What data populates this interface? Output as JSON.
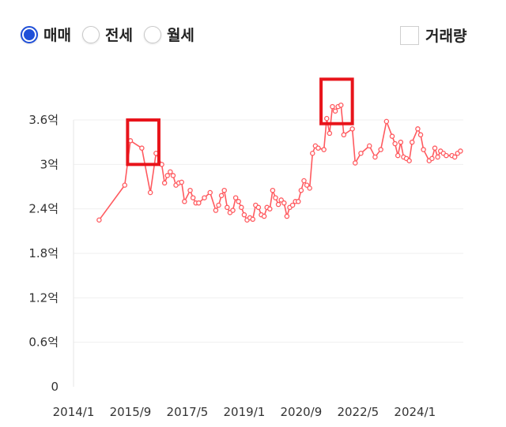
{
  "controls": {
    "radios": [
      {
        "label": "매매",
        "selected": true
      },
      {
        "label": "전세",
        "selected": false
      },
      {
        "label": "월세",
        "selected": false
      }
    ],
    "checkbox": {
      "label": "거래량",
      "checked": false
    }
  },
  "colors": {
    "accent": "#1f4fd8",
    "line": "#ff5a5f",
    "highlight": "#e8141b",
    "grid": "#efefef"
  },
  "chart_data": {
    "type": "line",
    "grid": true,
    "legend": "none",
    "ylim": [
      0,
      3.6
    ],
    "yticks": [
      0,
      0.6,
      1.2,
      1.8,
      2.4,
      3.0,
      3.6
    ],
    "ytick_labels": [
      "0",
      "0.6억",
      "1.2억",
      "1.8억",
      "2.4억",
      "3억",
      "3.6억"
    ],
    "xlim": [
      "2014-01",
      "2025-06"
    ],
    "xtick_labels": [
      "2014/1",
      "2015/9",
      "2017/5",
      "2019/1",
      "2020/9",
      "2022/5",
      "2024/1"
    ],
    "xticks": [
      "2014-01",
      "2015-09",
      "2017-05",
      "2019-01",
      "2020-09",
      "2022-05",
      "2024-01"
    ],
    "series": [
      {
        "x": [
          "2014-10",
          "2015-07",
          "2015-09",
          "2016-01",
          "2016-04",
          "2016-06",
          "2016-08",
          "2016-09",
          "2016-10",
          "2016-11",
          "2016-12",
          "2017-01",
          "2017-02",
          "2017-03",
          "2017-04",
          "2017-06",
          "2017-07",
          "2017-08",
          "2017-09",
          "2017-11",
          "2018-01",
          "2018-03",
          "2018-04",
          "2018-05",
          "2018-06",
          "2018-07",
          "2018-08",
          "2018-09",
          "2018-10",
          "2018-11",
          "2018-12",
          "2019-01",
          "2019-02",
          "2019-03",
          "2019-04",
          "2019-05",
          "2019-06",
          "2019-07",
          "2019-08",
          "2019-09",
          "2019-10",
          "2019-11",
          "2019-12",
          "2020-01",
          "2020-02",
          "2020-03",
          "2020-04",
          "2020-05",
          "2020-06",
          "2020-07",
          "2020-08",
          "2020-09",
          "2020-10",
          "2020-11",
          "2020-12",
          "2021-01",
          "2021-02",
          "2021-03",
          "2021-05",
          "2021-06",
          "2021-07",
          "2021-08",
          "2021-09",
          "2021-10",
          "2021-11",
          "2021-12",
          "2022-03",
          "2022-04",
          "2022-06",
          "2022-09",
          "2022-11",
          "2023-01",
          "2023-03",
          "2023-05",
          "2023-06",
          "2023-07",
          "2023-08",
          "2023-09",
          "2023-10",
          "2023-11",
          "2023-12",
          "2024-02",
          "2024-03",
          "2024-04",
          "2024-06",
          "2024-07",
          "2024-08",
          "2024-09",
          "2024-10",
          "2024-11",
          "2024-12",
          "2025-02",
          "2025-03",
          "2025-04",
          "2025-05"
        ],
        "values": [
          2.25,
          2.72,
          3.32,
          3.22,
          2.62,
          3.15,
          3.0,
          2.75,
          2.85,
          2.9,
          2.85,
          2.72,
          2.75,
          2.76,
          2.5,
          2.65,
          2.55,
          2.48,
          2.48,
          2.55,
          2.62,
          2.38,
          2.45,
          2.58,
          2.65,
          2.42,
          2.35,
          2.38,
          2.55,
          2.5,
          2.42,
          2.32,
          2.25,
          2.28,
          2.26,
          2.45,
          2.42,
          2.32,
          2.3,
          2.42,
          2.4,
          2.65,
          2.55,
          2.46,
          2.52,
          2.48,
          2.3,
          2.42,
          2.45,
          2.5,
          2.5,
          2.65,
          2.78,
          2.72,
          2.68,
          3.15,
          3.25,
          3.22,
          3.2,
          3.62,
          3.42,
          3.78,
          3.72,
          3.78,
          3.8,
          3.4,
          3.48,
          3.02,
          3.15,
          3.25,
          3.1,
          3.2,
          3.58,
          3.38,
          3.28,
          3.12,
          3.3,
          3.1,
          3.08,
          3.05,
          3.3,
          3.48,
          3.4,
          3.2,
          3.05,
          3.08,
          3.22,
          3.1,
          3.18,
          3.15,
          3.12,
          3.12,
          3.1,
          3.15,
          3.18
        ]
      }
    ],
    "highlights": [
      {
        "x0": "2015-08",
        "x1": "2016-07",
        "y0": 3.0,
        "y1": 3.6
      },
      {
        "x0": "2021-04",
        "x1": "2022-03",
        "y0": 3.55,
        "y1": 4.15
      }
    ]
  }
}
